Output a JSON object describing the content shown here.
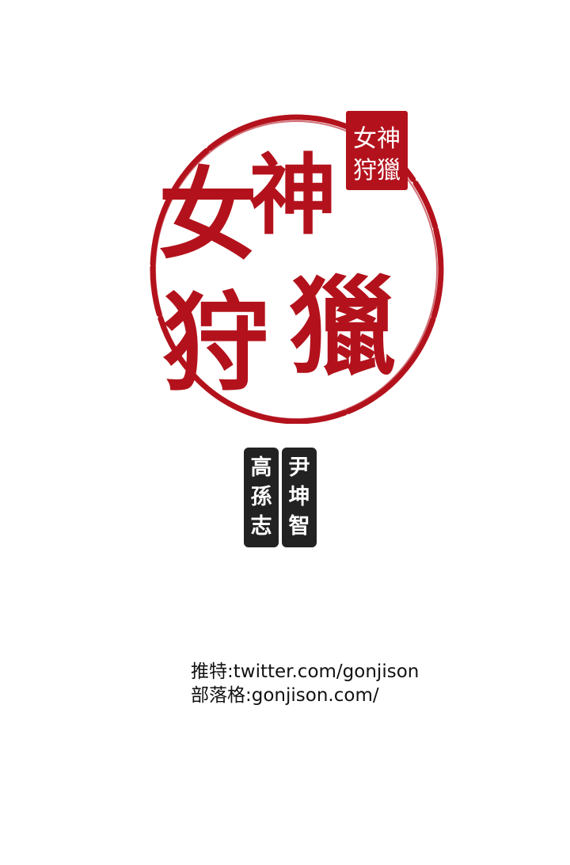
{
  "logo": {
    "title": "女神狩獵",
    "small_seal_text": "女神狩獵",
    "color": "#b3121c"
  },
  "authors": {
    "left": [
      "高",
      "孫",
      "志"
    ],
    "right": [
      "尹",
      "坤",
      "智"
    ]
  },
  "credits": {
    "twitter": "推特:twitter.com/gonjison",
    "blog": "部落格:gonjison.com/"
  }
}
